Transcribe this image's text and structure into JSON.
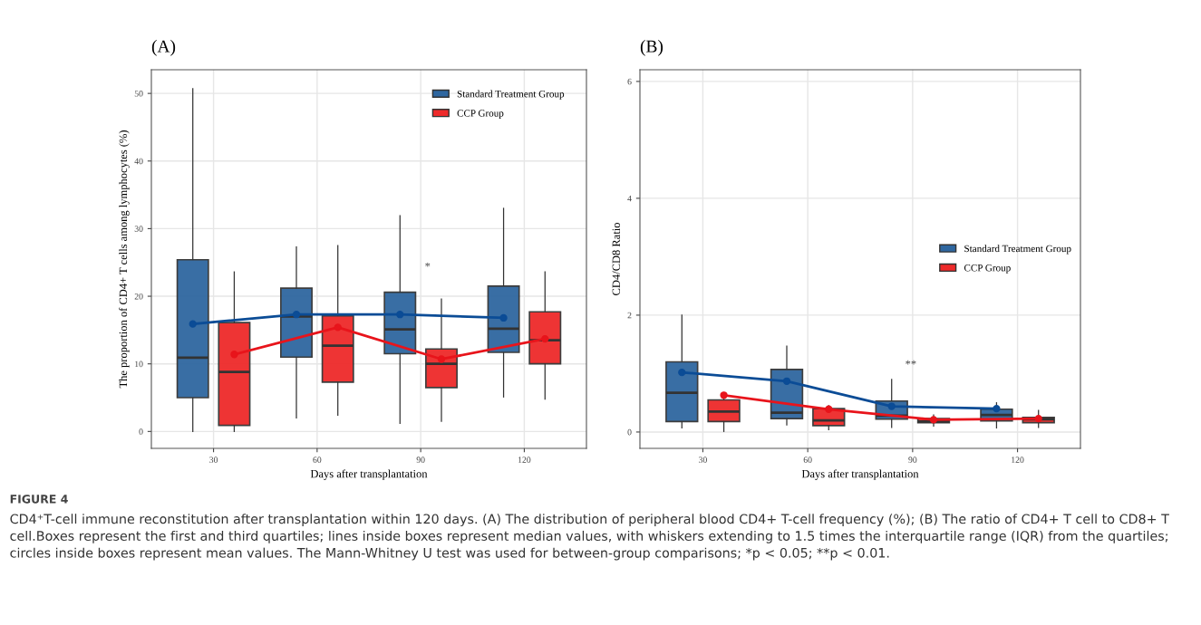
{
  "chart_data": [
    {
      "type": "box",
      "title": "(A)",
      "xlabel": "Days after transplantation",
      "ylabel": "The proportion of CD4+ T cells among lymphocytes (%)",
      "xlim": [
        12,
        138
      ],
      "xticks": [
        30,
        60,
        90,
        120
      ],
      "ylim": [
        -2.5,
        53.5
      ],
      "yticks": [
        0,
        10,
        20,
        30,
        40,
        50
      ],
      "grid": true,
      "legend": "top right",
      "marker": "circle",
      "series": [
        {
          "name": "Standard Treatment Group",
          "color": "#2f67a0",
          "x": [
            24,
            54,
            84,
            114
          ],
          "boxes": [
            {
              "low": 0,
              "q1": 5.0,
              "median": 10.9,
              "q3": 25.4,
              "high": 50.7
            },
            {
              "low": 2.0,
              "q1": 11.0,
              "median": 17.0,
              "q3": 21.2,
              "high": 27.3
            },
            {
              "low": 1.2,
              "q1": 11.5,
              "median": 15.1,
              "q3": 20.6,
              "high": 31.9
            },
            {
              "low": 5.1,
              "q1": 11.7,
              "median": 15.2,
              "q3": 21.5,
              "high": 33.0
            }
          ]
        },
        {
          "name": "CCP Group",
          "color": "#ee2a2a",
          "x": [
            36,
            66,
            96,
            126
          ],
          "boxes": [
            {
              "low": 0,
              "q1": 0.9,
              "median": 8.8,
              "q3": 16.1,
              "high": 23.6
            },
            {
              "low": 2.4,
              "q1": 7.3,
              "median": 12.7,
              "q3": 17.1,
              "high": 27.5
            },
            {
              "low": 1.5,
              "q1": 6.5,
              "median": 10.0,
              "q3": 12.2,
              "high": 19.6
            },
            {
              "low": 4.8,
              "q1": 10.0,
              "median": 13.5,
              "q3": 17.7,
              "high": 23.6
            }
          ]
        },
        {
          "type": "line",
          "color": "#0b4c96",
          "x": [
            24,
            54,
            84,
            114
          ],
          "values": [
            15.9,
            17.3,
            17.3,
            16.8
          ]
        },
        {
          "type": "line",
          "color": "#e8141b",
          "x": [
            36,
            66,
            96,
            126
          ],
          "values": [
            11.4,
            15.4,
            10.7,
            13.7
          ]
        }
      ],
      "annotations": [
        "*",
        "FIGURE 4",
        "CD4⁺T-cell immune reconstitution after transplantation within 120 days. (A) The distribution of peripheral blood CD4+ T-cell frequency (%); (B) The ratio of CD4+ T cell to CD8+ T cell.Boxes represent the first and third quartiles; lines inside boxes represent median values, with whiskers extending to 1.5 times the interquartile range (IQR) from the quartiles; circles inside boxes represent mean values. The Mann-Whitney U test was used for between-group comparisons; *p < 0.05; **p < 0.01."
      ]
    },
    {
      "type": "box",
      "title": "(B)",
      "xlabel": "Days after transplantation",
      "ylabel": "CD4/CD8 Ratio",
      "xlim": [
        12,
        138
      ],
      "xticks": [
        30,
        60,
        90,
        120
      ],
      "ylim": [
        -0.28,
        6.2
      ],
      "yticks": [
        0,
        2,
        4,
        6
      ],
      "grid": true,
      "legend": "right",
      "marker": "circle",
      "series": [
        {
          "name": "Standard Treatment Group",
          "color": "#2f67a0",
          "x": [
            24,
            54,
            84,
            114
          ],
          "boxes": [
            {
              "low": 0.07,
              "q1": 0.18,
              "median": 0.67,
              "q3": 1.2,
              "high": 2.0
            },
            {
              "low": 0.12,
              "q1": 0.23,
              "median": 0.33,
              "q3": 1.07,
              "high": 1.47
            },
            {
              "low": 0.08,
              "q1": 0.22,
              "median": 0.28,
              "q3": 0.53,
              "high": 0.9
            },
            {
              "low": 0.07,
              "q1": 0.19,
              "median": 0.29,
              "q3": 0.39,
              "high": 0.5
            }
          ]
        },
        {
          "name": "CCP Group",
          "color": "#ee2a2a",
          "x": [
            36,
            66,
            96,
            126
          ],
          "boxes": [
            {
              "low": 0.01,
              "q1": 0.18,
              "median": 0.35,
              "q3": 0.55,
              "high": 0.58
            },
            {
              "low": 0.04,
              "q1": 0.11,
              "median": 0.2,
              "q3": 0.4,
              "high": 0.45
            },
            {
              "low": 0.1,
              "q1": 0.16,
              "median": 0.18,
              "q3": 0.23,
              "high": 0.29
            },
            {
              "low": 0.08,
              "q1": 0.16,
              "median": 0.22,
              "q3": 0.25,
              "high": 0.37
            }
          ]
        },
        {
          "type": "line",
          "color": "#0b4c96",
          "x": [
            24,
            54,
            84,
            114
          ],
          "values": [
            1.02,
            0.87,
            0.44,
            0.4
          ]
        },
        {
          "type": "line",
          "color": "#e8141b",
          "x": [
            36,
            66,
            96,
            126
          ],
          "values": [
            0.63,
            0.39,
            0.21,
            0.23
          ]
        }
      ],
      "annotations": [
        "**"
      ]
    }
  ]
}
